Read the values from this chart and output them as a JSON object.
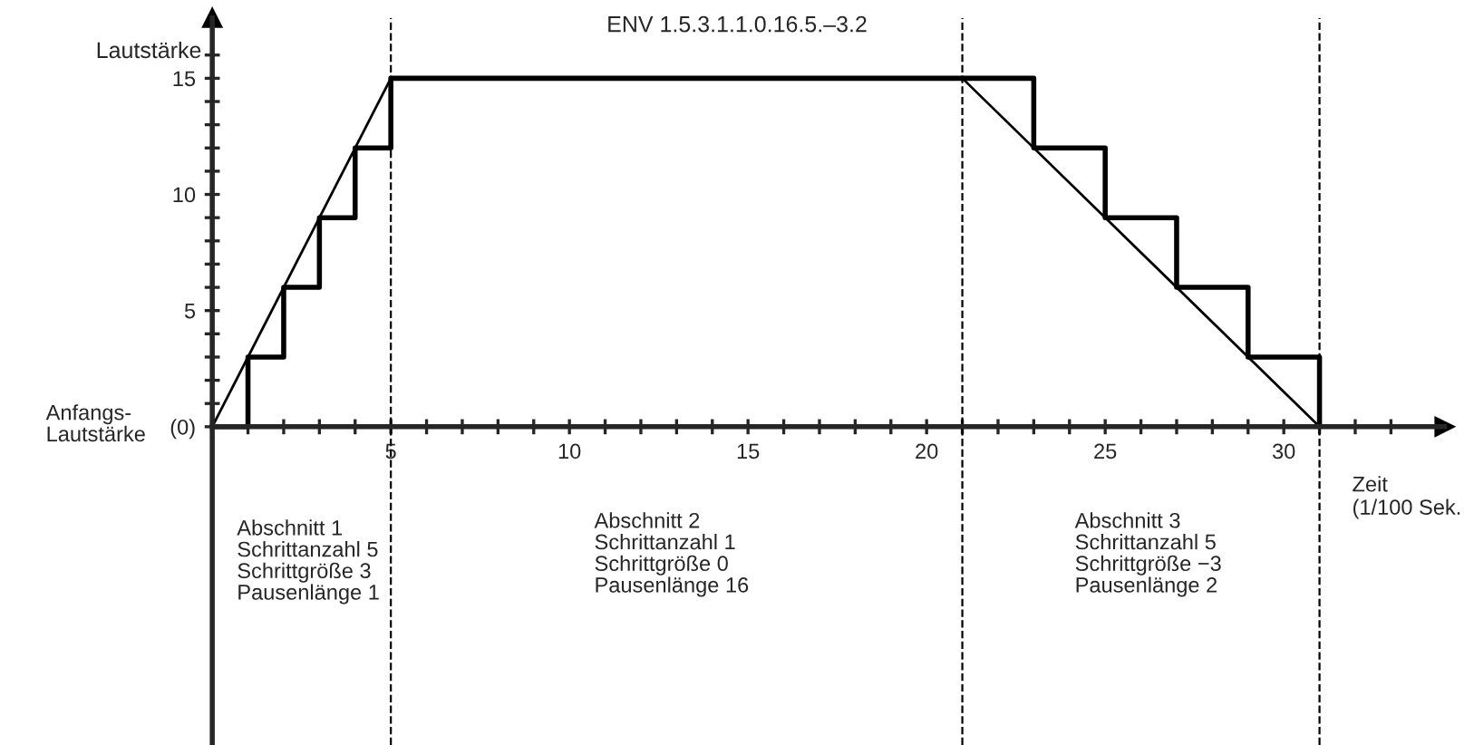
{
  "chart_data": {
    "type": "line",
    "title": "ENV 1.5.3.1.1.0.16.5.–3.2",
    "ylabel": "Lautstärke",
    "xlabel": "Zeit\n(1/100 Sek.",
    "series": [
      {
        "type": "step",
        "color": "#000000",
        "x": [
          0,
          1,
          2,
          3,
          4,
          5,
          23,
          25,
          27,
          29,
          31
        ],
        "values": [
          0,
          3,
          6,
          9,
          12,
          15,
          12,
          9,
          6,
          3,
          0
        ]
      },
      {
        "type": "line",
        "color": "#000000",
        "x": [
          0,
          5,
          21,
          31
        ],
        "values": [
          0,
          15,
          15,
          0
        ]
      }
    ],
    "xlim": [
      0,
      34.5
    ],
    "ylim": [
      -13.7,
      17.6
    ],
    "xticks": [
      {
        "value": 1,
        "label": null
      },
      {
        "value": 2,
        "label": null
      },
      {
        "value": 3,
        "label": null
      },
      {
        "value": 4,
        "label": null
      },
      5,
      {
        "value": 6,
        "label": null
      },
      {
        "value": 7,
        "label": null
      },
      {
        "value": 8,
        "label": null
      },
      {
        "value": 9,
        "label": null
      },
      10,
      {
        "value": 11,
        "label": null
      },
      {
        "value": 12,
        "label": null
      },
      {
        "value": 13,
        "label": null
      },
      {
        "value": 14,
        "label": null
      },
      15,
      {
        "value": 16,
        "label": null
      },
      {
        "value": 17,
        "label": null
      },
      {
        "value": 18,
        "label": null
      },
      {
        "value": 19,
        "label": null
      },
      20,
      {
        "value": 21,
        "label": null
      },
      {
        "value": 22,
        "label": null
      },
      {
        "value": 23,
        "label": null
      },
      {
        "value": 24,
        "label": null
      },
      25,
      {
        "value": 26,
        "label": null
      },
      {
        "value": 27,
        "label": null
      },
      {
        "value": 28,
        "label": null
      },
      {
        "value": 29,
        "label": null
      },
      30,
      {
        "value": 31,
        "label": null
      },
      {
        "value": 32,
        "label": null
      },
      {
        "value": 33,
        "label": null
      }
    ],
    "yticks": [
      {
        "value": 0,
        "label": "(0)"
      },
      {
        "value": 1,
        "label": null
      },
      {
        "value": 2,
        "label": null
      },
      {
        "value": 3,
        "label": null
      },
      {
        "value": 4,
        "label": null
      },
      5,
      {
        "value": 6,
        "label": null
      },
      {
        "value": 7,
        "label": null
      },
      {
        "value": 8,
        "label": null
      },
      {
        "value": 9,
        "label": null
      },
      10,
      {
        "value": 11,
        "label": null
      },
      {
        "value": 12,
        "label": null
      },
      {
        "value": 13,
        "label": null
      },
      {
        "value": 14,
        "label": null
      },
      15,
      {
        "value": 16,
        "label": null
      }
    ],
    "ref_lines": [
      {
        "axis": "x",
        "value": 5,
        "line_style": "dashed"
      },
      {
        "axis": "x",
        "value": 21,
        "line_style": "dashed"
      },
      {
        "axis": "x",
        "value": 31,
        "line_style": "dashed"
      }
    ],
    "annotations": [
      "Anfangs-\nLautstärke",
      "Abschnitt 1\nSchrittanzahl 5\nSchrittgröße 3\nPausenlänge 1",
      "Abschnitt 2\nSchrittanzahl 1\nSchrittgröße 0\nPausenlänge 16",
      "Abschnitt 3\nSchrittanzahl 5\nSchrittgröße −3\nPausenlänge 2"
    ],
    "grid": false,
    "legend": false,
    "marker": "none"
  }
}
